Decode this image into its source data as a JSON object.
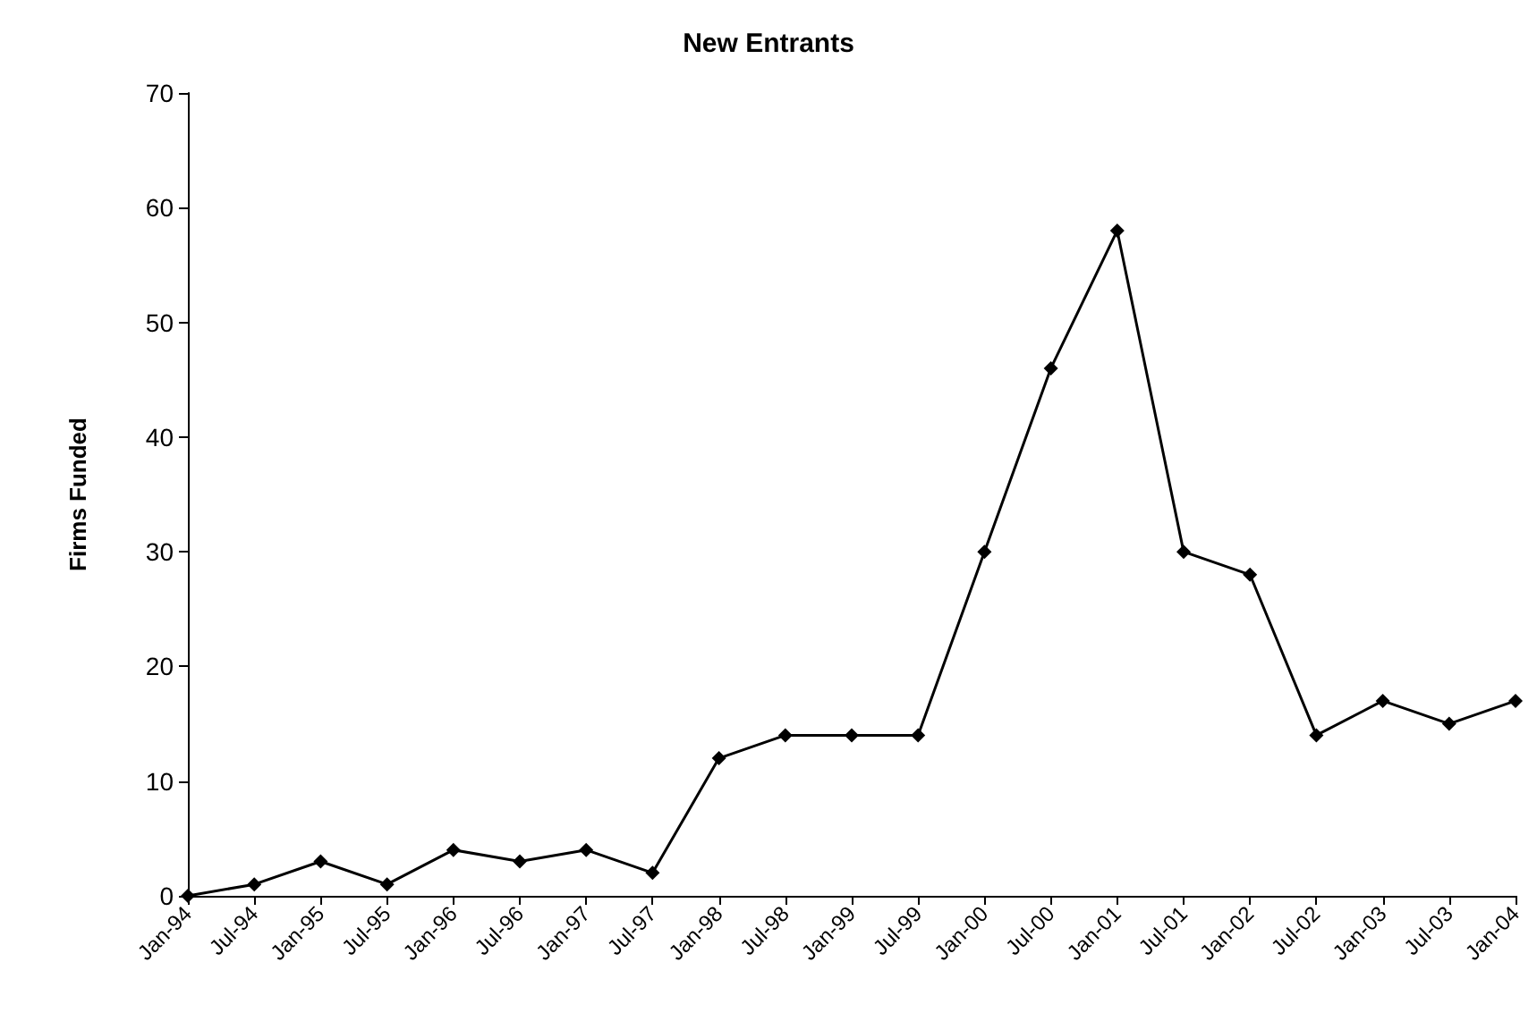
{
  "chart_data": {
    "type": "line",
    "title": "New Entrants",
    "ylabel": "Firms Funded",
    "categories": [
      "Jan-94",
      "Jul-94",
      "Jan-95",
      "Jul-95",
      "Jan-96",
      "Jul-96",
      "Jan-97",
      "Jul-97",
      "Jan-98",
      "Jul-98",
      "Jan-99",
      "Jul-99",
      "Jan-00",
      "Jul-00",
      "Jan-01",
      "Jul-01",
      "Jan-02",
      "Jul-02",
      "Jan-03",
      "Jul-03",
      "Jan-04"
    ],
    "series": [
      {
        "color": "#000000",
        "values": [
          0,
          1,
          3,
          1,
          4,
          3,
          4,
          2,
          12,
          14,
          14,
          14,
          30,
          46,
          58,
          30,
          28,
          14,
          17,
          15,
          17
        ]
      }
    ],
    "ylim": [
      0,
      70
    ],
    "yticks": [
      0,
      10,
      20,
      30,
      40,
      50,
      60,
      70
    ],
    "grid": false,
    "marker": "diamond",
    "line_style": "solid"
  }
}
